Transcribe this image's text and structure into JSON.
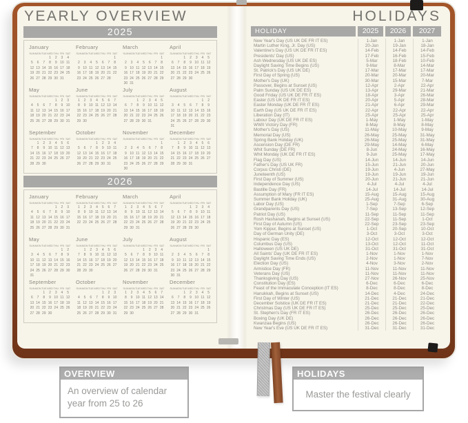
{
  "left_page": {
    "title": "YEARLY OVERVIEW",
    "dow": [
      "SUN",
      "MON",
      "TUE",
      "WED",
      "THU",
      "FRI",
      "SAT"
    ],
    "years": [
      {
        "label": "2025",
        "months": [
          {
            "name": "January",
            "first_dow": 3,
            "days": 31
          },
          {
            "name": "February",
            "first_dow": 6,
            "days": 28
          },
          {
            "name": "March",
            "first_dow": 6,
            "days": 31
          },
          {
            "name": "April",
            "first_dow": 2,
            "days": 30
          },
          {
            "name": "May",
            "first_dow": 4,
            "days": 31
          },
          {
            "name": "June",
            "first_dow": 0,
            "days": 30
          },
          {
            "name": "July",
            "first_dow": 2,
            "days": 31
          },
          {
            "name": "August",
            "first_dow": 5,
            "days": 31
          },
          {
            "name": "September",
            "first_dow": 1,
            "days": 30
          },
          {
            "name": "October",
            "first_dow": 3,
            "days": 31
          },
          {
            "name": "November",
            "first_dow": 6,
            "days": 30
          },
          {
            "name": "December",
            "first_dow": 1,
            "days": 31
          }
        ]
      },
      {
        "label": "2026",
        "months": [
          {
            "name": "January",
            "first_dow": 4,
            "days": 31
          },
          {
            "name": "February",
            "first_dow": 0,
            "days": 28
          },
          {
            "name": "March",
            "first_dow": 0,
            "days": 31
          },
          {
            "name": "April",
            "first_dow": 3,
            "days": 30
          },
          {
            "name": "May",
            "first_dow": 5,
            "days": 31
          },
          {
            "name": "June",
            "first_dow": 1,
            "days": 30
          },
          {
            "name": "July",
            "first_dow": 3,
            "days": 31
          },
          {
            "name": "August",
            "first_dow": 6,
            "days": 31
          },
          {
            "name": "September",
            "first_dow": 2,
            "days": 30
          },
          {
            "name": "October",
            "first_dow": 4,
            "days": 31
          },
          {
            "name": "November",
            "first_dow": 0,
            "days": 30
          },
          {
            "name": "December",
            "first_dow": 2,
            "days": 31
          }
        ]
      }
    ]
  },
  "right_page": {
    "title": "HOLIDAYS",
    "table": {
      "name_header": "HOLIDAY",
      "year_headers": [
        "2025",
        "2026",
        "2027"
      ],
      "rows": [
        {
          "name": "New Year's Day (US UK DE FR IT ES)",
          "dates": [
            "1-Jan",
            "1-Jan",
            "1-Jan"
          ]
        },
        {
          "name": "Martin Luther King, Jr. Day (US)",
          "dates": [
            "20-Jan",
            "19-Jan",
            "18-Jan"
          ]
        },
        {
          "name": "Valentine's Day (US UK DE FR IT ES)",
          "dates": [
            "14-Feb",
            "14-Feb",
            "14-Feb"
          ]
        },
        {
          "name": "Presidents' Day (US)",
          "dates": [
            "17-Feb",
            "16-Feb",
            "15-Feb"
          ]
        },
        {
          "name": "Ash Wednesday (US UK DE ES)",
          "dates": [
            "5-Mar",
            "18-Feb",
            "10-Feb"
          ]
        },
        {
          "name": "Daylight Saving Time Begins (US)",
          "dates": [
            "9-Mar",
            "8-Mar",
            "14-Mar"
          ]
        },
        {
          "name": "St. Patrick's Day (US UK DE)",
          "dates": [
            "17-Mar",
            "17-Mar",
            "17-Mar"
          ]
        },
        {
          "name": "First Day of Spring (US)",
          "dates": [
            "20-Mar",
            "20-Mar",
            "20-Mar"
          ]
        },
        {
          "name": "Mother's Day (UK)",
          "dates": [
            "30-Mar",
            "15-Mar",
            "7-Mar"
          ]
        },
        {
          "name": "Passover, Begins at Sunset (US)",
          "dates": [
            "12-Apr",
            "2-Apr",
            "22-Apr"
          ]
        },
        {
          "name": "Palm Sunday (US UK DE ES)",
          "dates": [
            "13-Apr",
            "29-Mar",
            "21-Mar"
          ]
        },
        {
          "name": "Good Friday (US UK DE FR IT ES)",
          "dates": [
            "18-Apr",
            "3-Apr",
            "26-Mar"
          ]
        },
        {
          "name": "Easter (US UK DE FR IT ES)",
          "dates": [
            "20-Apr",
            "5-Apr",
            "28-Mar"
          ]
        },
        {
          "name": "Easter Monday (UK DE FR IT ES)",
          "dates": [
            "21-Apr",
            "6-Apr",
            "29-Mar"
          ]
        },
        {
          "name": "Earth Day (US UK DE FR IT ES)",
          "dates": [
            "22-Apr",
            "22-Apr",
            "22-Apr"
          ]
        },
        {
          "name": "Liberation Day (IT)",
          "dates": [
            "25-Apr",
            "25-Apr",
            "25-Apr"
          ]
        },
        {
          "name": "Labour Day (UK DE FR IT ES)",
          "dates": [
            "1-May",
            "1-May",
            "1-May"
          ]
        },
        {
          "name": "WWII Victory Day (FR)",
          "dates": [
            "8-May",
            "8-May",
            "8-May"
          ]
        },
        {
          "name": "Mother's Day (US)",
          "dates": [
            "11-May",
            "10-May",
            "9-May"
          ]
        },
        {
          "name": "Memorial Day (US)",
          "dates": [
            "26-May",
            "25-May",
            "31-May"
          ]
        },
        {
          "name": "Spring Bank Holiday (UK)",
          "dates": [
            "26-May",
            "25-May",
            "31-May"
          ]
        },
        {
          "name": "Ascension Day (DE FR)",
          "dates": [
            "29-May",
            "14-May",
            "6-May"
          ]
        },
        {
          "name": "Whit Sunday (DE FR)",
          "dates": [
            "8-Jun",
            "24-May",
            "16-May"
          ]
        },
        {
          "name": "Whit Monday (UK DE FR IT ES)",
          "dates": [
            "9-Jun",
            "25-May",
            "17-May"
          ]
        },
        {
          "name": "Flag Day (US)",
          "dates": [
            "14-Jun",
            "14-Jun",
            "14-Jun"
          ]
        },
        {
          "name": "Father's Day (US UK FR)",
          "dates": [
            "15-Jun",
            "21-Jun",
            "20-Jun"
          ]
        },
        {
          "name": "Corpus Christi (DE)",
          "dates": [
            "19-Jun",
            "4-Jun",
            "27-May"
          ]
        },
        {
          "name": "Juneteenth (US)",
          "dates": [
            "19-Jun",
            "19-Jun",
            "19-Jun"
          ]
        },
        {
          "name": "First Day of Summer (US)",
          "dates": [
            "20-Jun",
            "21-Jun",
            "21-Jun"
          ]
        },
        {
          "name": "Independence Day (US)",
          "dates": [
            "4-Jul",
            "4-Jul",
            "4-Jul"
          ]
        },
        {
          "name": "Bastille Day (FR)",
          "dates": [
            "14-Jul",
            "14-Jul",
            "14-Jul"
          ]
        },
        {
          "name": "Assumption of Mary (FR IT ES)",
          "dates": [
            "15-Aug",
            "15-Aug",
            "15-Aug"
          ]
        },
        {
          "name": "Summer Bank Holiday (UK)",
          "dates": [
            "25-Aug",
            "31-Aug",
            "30-Aug"
          ]
        },
        {
          "name": "Labor Day (US)",
          "dates": [
            "1-Sep",
            "7-Sep",
            "6-Sep"
          ]
        },
        {
          "name": "Grandparents Day (US)",
          "dates": [
            "7-Sep",
            "13-Sep",
            "12-Sep"
          ]
        },
        {
          "name": "Patriot Day (US)",
          "dates": [
            "11-Sep",
            "11-Sep",
            "11-Sep"
          ]
        },
        {
          "name": "Rosh Hashanah, Begins at Sunset (US)",
          "dates": [
            "22-Sep",
            "11-Sep",
            "1-Oct"
          ]
        },
        {
          "name": "First Day of Autumn (US)",
          "dates": [
            "22-Sep",
            "23-Sep",
            "23-Sep"
          ]
        },
        {
          "name": "Yom Kippur, Begins at Sunset (US)",
          "dates": [
            "1-Oct",
            "20-Sep",
            "10-Oct"
          ]
        },
        {
          "name": "Day of German Unity (DE)",
          "dates": [
            "3-Oct",
            "3-Oct",
            "3-Oct"
          ]
        },
        {
          "name": "Hispanic Day (ES)",
          "dates": [
            "12-Oct",
            "12-Oct",
            "12-Oct"
          ]
        },
        {
          "name": "Columbus Day (US)",
          "dates": [
            "13-Oct",
            "12-Oct",
            "11-Oct"
          ]
        },
        {
          "name": "Halloween (US UK DE)",
          "dates": [
            "31-Oct",
            "31-Oct",
            "31-Oct"
          ]
        },
        {
          "name": "All Saints' Day (UK DE FR IT ES)",
          "dates": [
            "1-Nov",
            "1-Nov",
            "1-Nov"
          ]
        },
        {
          "name": "Daylight Saving Time Ends (US)",
          "dates": [
            "2-Nov",
            "1-Nov",
            "7-Nov"
          ]
        },
        {
          "name": "Election Day (US)",
          "dates": [
            "4-Nov",
            "3-Nov",
            "2-Nov"
          ]
        },
        {
          "name": "Armistice Day (FR)",
          "dates": [
            "11-Nov",
            "11-Nov",
            "11-Nov"
          ]
        },
        {
          "name": "Veterans Day (US)",
          "dates": [
            "11-Nov",
            "11-Nov",
            "11-Nov"
          ]
        },
        {
          "name": "Thanksgiving Day (US)",
          "dates": [
            "27-Nov",
            "26-Nov",
            "25-Nov"
          ]
        },
        {
          "name": "Constitution Day (ES)",
          "dates": [
            "6-Dec",
            "6-Dec",
            "6-Dec"
          ]
        },
        {
          "name": "Feast of the Immaculate Conception (IT ES)",
          "dates": [
            "8-Dec",
            "8-Dec",
            "8-Dec"
          ]
        },
        {
          "name": "Hanukkah, Begins at Sunset (US)",
          "dates": [
            "14-Dec",
            "4-Dec",
            "24-Dec"
          ]
        },
        {
          "name": "First Day of Winter (US)",
          "dates": [
            "21-Dec",
            "21-Dec",
            "21-Dec"
          ]
        },
        {
          "name": "December Solstice (UK DE FR IT ES)",
          "dates": [
            "21-Dec",
            "21-Dec",
            "22-Dec"
          ]
        },
        {
          "name": "Christmas Day (US UK DE FR IT ES)",
          "dates": [
            "25-Dec",
            "25-Dec",
            "25-Dec"
          ]
        },
        {
          "name": "St. Stephen's Day (FR IT ES)",
          "dates": [
            "26-Dec",
            "26-Dec",
            "26-Dec"
          ]
        },
        {
          "name": "Boxing Day (UK DE)",
          "dates": [
            "26-Dec",
            "26-Dec",
            "26-Dec"
          ]
        },
        {
          "name": "Kwanzaa Begins (US)",
          "dates": [
            "26-Dec",
            "26-Dec",
            "26-Dec"
          ]
        },
        {
          "name": "New Year's Eve (US UK DE FR IT ES)",
          "dates": [
            "31-Dec",
            "31-Dec",
            "31-Dec"
          ]
        }
      ]
    }
  },
  "callouts": [
    {
      "title": "OVERVIEW",
      "body": "An overview of calendar year from 25 to 26"
    },
    {
      "title": "HOLIDAYS",
      "body": "Master the festival clearly"
    }
  ],
  "colors": {
    "paper": "#f7f4ea",
    "header_bar_grey": "#a8a8a6",
    "header_bar_text": "#ffffff",
    "cover_brown": "#8f4a26",
    "text_grey": "#8f8d85",
    "ribbon_grey": "#bdbdbd",
    "ribbon_brown": "#96582f",
    "elastic_black": "#1d1c1a",
    "callout_header_grey": "#aeaeae"
  }
}
